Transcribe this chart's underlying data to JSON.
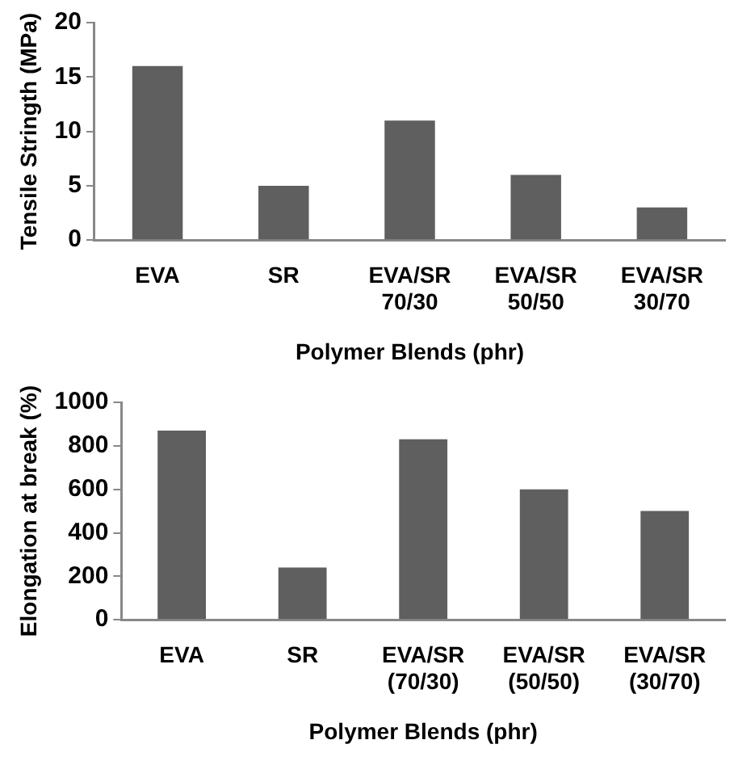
{
  "chart_data": [
    {
      "type": "bar",
      "xlabel": "Polymer Blends (phr)",
      "ylabel": "Tensile Stringth (MPa)",
      "categories": [
        "EVA",
        "SR",
        "EVA/SR 70/30",
        "EVA/SR 50/50",
        "EVA/SR 30/70"
      ],
      "values": [
        16,
        5,
        11,
        6,
        3
      ],
      "color": "#5f5f5f",
      "ylim": [
        0,
        20
      ],
      "yticks": [
        0,
        5,
        10,
        15,
        20
      ],
      "grid": false,
      "legend": false
    },
    {
      "type": "bar",
      "xlabel": "Polymer Blends (phr)",
      "ylabel": "Elongation at break (%)",
      "categories": [
        "EVA",
        "SR",
        "EVA/SR (70/30)",
        "EVA/SR (50/50)",
        "EVA/SR (30/70)"
      ],
      "values": [
        870,
        240,
        830,
        600,
        500
      ],
      "color": "#5f5f5f",
      "ylim": [
        0,
        1000
      ],
      "yticks": [
        0,
        200,
        400,
        600,
        800,
        1000
      ],
      "grid": false,
      "legend": false
    }
  ]
}
